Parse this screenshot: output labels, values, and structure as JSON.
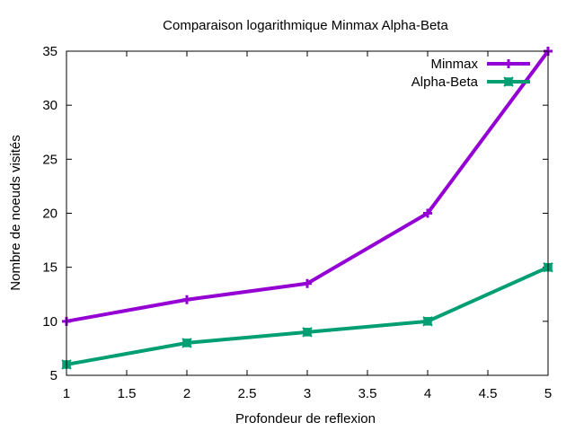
{
  "chart_data": {
    "type": "line",
    "title": "Comparaison logarithmique Minmax Alpha-Beta",
    "xlabel": "Profondeur de reflexion",
    "ylabel": "Nombre de noeuds visités",
    "xlim": [
      1,
      5
    ],
    "ylim": [
      5,
      35
    ],
    "xticks": [
      1,
      1.5,
      2,
      2.5,
      3,
      3.5,
      4,
      4.5,
      5
    ],
    "xtick_labels": [
      "1",
      "1.5",
      "2",
      "2.5",
      "3",
      "3.5",
      "4",
      "4.5",
      "5"
    ],
    "yticks": [
      5,
      10,
      15,
      20,
      25,
      30,
      35
    ],
    "ytick_labels": [
      "5",
      "10",
      "15",
      "20",
      "25",
      "30",
      "35"
    ],
    "grid": false,
    "legend_position": "top-right",
    "x": [
      1,
      2,
      3,
      4,
      5
    ],
    "series": [
      {
        "name": "Minmax",
        "values": [
          10,
          12,
          13.5,
          20,
          35
        ],
        "color": "#9400d3",
        "marker": "plus"
      },
      {
        "name": "Alpha-Beta",
        "values": [
          6,
          8,
          9,
          10,
          15
        ],
        "color": "#009e73",
        "marker": "cross-box"
      }
    ]
  }
}
